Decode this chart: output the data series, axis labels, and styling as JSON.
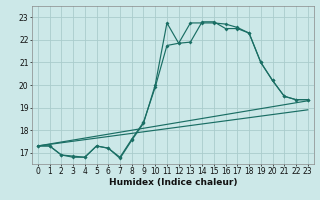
{
  "xlabel": "Humidex (Indice chaleur)",
  "bg_color": "#cce8e8",
  "line_color": "#1a6e64",
  "grid_color": "#aacccc",
  "xlim": [
    -0.5,
    23.5
  ],
  "ylim": [
    16.5,
    23.5
  ],
  "xticks": [
    0,
    1,
    2,
    3,
    4,
    5,
    6,
    7,
    8,
    9,
    10,
    11,
    12,
    13,
    14,
    15,
    16,
    17,
    18,
    19,
    20,
    21,
    22,
    23
  ],
  "yticks": [
    17,
    18,
    19,
    20,
    21,
    22,
    23
  ],
  "series": [
    {
      "x": [
        0,
        1,
        2,
        3,
        4,
        5,
        6,
        7,
        8,
        9,
        10,
        11,
        12,
        13,
        14,
        15,
        16,
        17,
        18,
        19,
        20,
        21,
        22,
        23
      ],
      "y": [
        17.3,
        17.3,
        16.9,
        16.8,
        16.8,
        17.3,
        17.2,
        16.8,
        17.6,
        18.35,
        19.9,
        21.75,
        21.85,
        22.75,
        22.75,
        22.75,
        22.7,
        22.55,
        22.3,
        21.0,
        20.2,
        19.5,
        19.35,
        19.35
      ],
      "has_markers": true
    },
    {
      "x": [
        0,
        1,
        2,
        3,
        4,
        5,
        6,
        7,
        8,
        9,
        10,
        11,
        12,
        13,
        14,
        15,
        16,
        17,
        18,
        19,
        20,
        21,
        22,
        23
      ],
      "y": [
        17.3,
        17.3,
        16.9,
        16.85,
        16.8,
        17.3,
        17.2,
        16.75,
        17.55,
        18.3,
        20.0,
        22.75,
        21.85,
        21.9,
        22.8,
        22.8,
        22.5,
        22.5,
        22.3,
        21.0,
        20.2,
        19.5,
        19.35,
        19.35
      ],
      "has_markers": true
    },
    {
      "x": [
        0,
        23
      ],
      "y": [
        17.3,
        19.3
      ],
      "has_markers": false
    },
    {
      "x": [
        0,
        23
      ],
      "y": [
        17.3,
        18.9
      ],
      "has_markers": false
    }
  ],
  "tick_fontsize": 5.5,
  "xlabel_fontsize": 6.5,
  "linewidth": 0.85,
  "marker_size": 2.0
}
